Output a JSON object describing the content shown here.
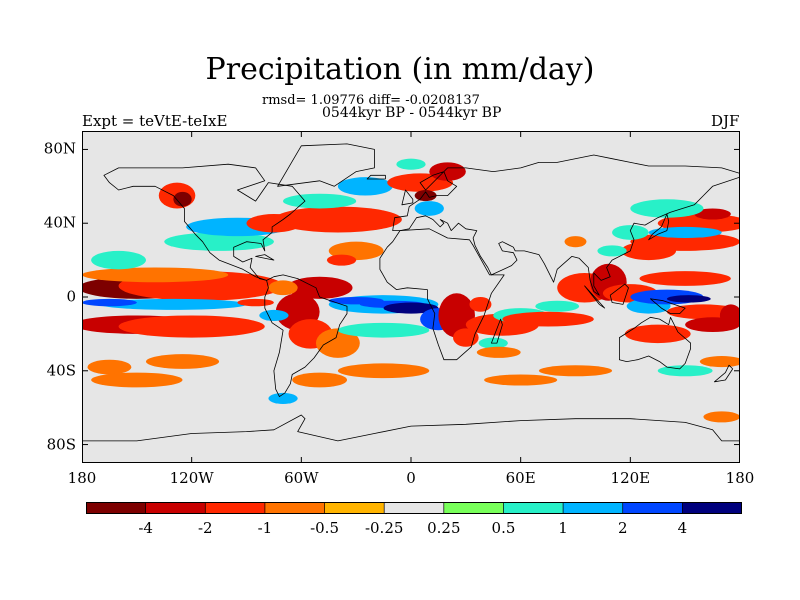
{
  "chart_data": {
    "type": "heatmap",
    "title": "Precipitation (in mm/day)",
    "stats_line": "rmsd= 1.09776 diff= -0.0208137",
    "period_line": "0544kyr BP - 0544kyr BP",
    "left_label": "Expt = teVtE-teIxE",
    "right_label": "DJF",
    "x_ticks": [
      {
        "value": -180,
        "label": "180"
      },
      {
        "value": -120,
        "label": "120W"
      },
      {
        "value": -60,
        "label": "60W"
      },
      {
        "value": 0,
        "label": "0"
      },
      {
        "value": 60,
        "label": "60E"
      },
      {
        "value": 120,
        "label": "120E"
      },
      {
        "value": 180,
        "label": "180"
      }
    ],
    "y_ticks": [
      {
        "value": 80,
        "label": "80N"
      },
      {
        "value": 40,
        "label": "40N"
      },
      {
        "value": 0,
        "label": "0"
      },
      {
        "value": -40,
        "label": "40S"
      },
      {
        "value": -80,
        "label": "80S"
      }
    ],
    "xlim": [
      -180,
      180
    ],
    "ylim": [
      -90,
      90
    ],
    "colorbar": {
      "levels": [
        "-4",
        "-2",
        "-1",
        "-0.5",
        "-0.25",
        "0.25",
        "0.5",
        "1",
        "2",
        "4"
      ],
      "colors": [
        "#7d0000",
        "#c80000",
        "#ff2800",
        "#ff7300",
        "#ffb400",
        "#e6e6e6",
        "#78ff5a",
        "#28f0c8",
        "#00b4ff",
        "#0046ff",
        "#00007d"
      ]
    },
    "background_color": "#e6e6e6",
    "coast_color": "#000000",
    "anomalies": [
      {
        "lon": -150,
        "lat": 5,
        "rx": 32,
        "ry": 6,
        "v": -4.5
      },
      {
        "lon": -115,
        "lat": 6,
        "rx": 45,
        "ry": 8,
        "v": -1.5
      },
      {
        "lon": -140,
        "lat": 12,
        "rx": 40,
        "ry": 4,
        "v": -0.6
      },
      {
        "lon": -160,
        "lat": 20,
        "rx": 15,
        "ry": 5,
        "v": 0.6
      },
      {
        "lon": -130,
        "lat": -4,
        "rx": 40,
        "ry": 3,
        "v": 1.5
      },
      {
        "lon": -165,
        "lat": -3,
        "rx": 15,
        "ry": 2,
        "v": 2.5
      },
      {
        "lon": -150,
        "lat": -15,
        "rx": 35,
        "ry": 5,
        "v": -2.5
      },
      {
        "lon": -120,
        "lat": -16,
        "rx": 40,
        "ry": 6,
        "v": -1.5
      },
      {
        "lon": -125,
        "lat": -35,
        "rx": 20,
        "ry": 4,
        "v": -0.6
      },
      {
        "lon": -165,
        "lat": -38,
        "rx": 12,
        "ry": 4,
        "v": -0.6
      },
      {
        "lon": -150,
        "lat": -45,
        "rx": 25,
        "ry": 4,
        "v": -0.6
      },
      {
        "lon": -105,
        "lat": 30,
        "rx": 30,
        "ry": 5,
        "v": 0.6
      },
      {
        "lon": -95,
        "lat": 38,
        "rx": 28,
        "ry": 5,
        "v": 1.2
      },
      {
        "lon": -128,
        "lat": 55,
        "rx": 10,
        "ry": 7,
        "v": -1.2
      },
      {
        "lon": -125,
        "lat": 53,
        "rx": 5,
        "ry": 4,
        "v": -4
      },
      {
        "lon": -75,
        "lat": 40,
        "rx": 15,
        "ry": 5,
        "v": -1.2
      },
      {
        "lon": -40,
        "lat": 42,
        "rx": 35,
        "ry": 7,
        "v": -1.5
      },
      {
        "lon": -50,
        "lat": 52,
        "rx": 20,
        "ry": 4,
        "v": 0.6
      },
      {
        "lon": -30,
        "lat": 25,
        "rx": 15,
        "ry": 5,
        "v": -0.6
      },
      {
        "lon": -38,
        "lat": 20,
        "rx": 8,
        "ry": 3,
        "v": -1.2
      },
      {
        "lon": -25,
        "lat": 60,
        "rx": 15,
        "ry": 5,
        "v": 1.5
      },
      {
        "lon": 5,
        "lat": 62,
        "rx": 18,
        "ry": 5,
        "v": -1.2
      },
      {
        "lon": 20,
        "lat": 68,
        "rx": 10,
        "ry": 5,
        "v": -2.5
      },
      {
        "lon": 8,
        "lat": 55,
        "rx": 6,
        "ry": 3,
        "v": -4
      },
      {
        "lon": 10,
        "lat": 48,
        "rx": 8,
        "ry": 4,
        "v": 1.5
      },
      {
        "lon": 0,
        "lat": 72,
        "rx": 8,
        "ry": 3,
        "v": 0.6
      },
      {
        "lon": -50,
        "lat": 5,
        "rx": 18,
        "ry": 6,
        "v": -2.5
      },
      {
        "lon": -62,
        "lat": -8,
        "rx": 12,
        "ry": 10,
        "v": -3.5
      },
      {
        "lon": -55,
        "lat": -20,
        "rx": 12,
        "ry": 8,
        "v": -1.5
      },
      {
        "lon": -70,
        "lat": 5,
        "rx": 8,
        "ry": 4,
        "v": -0.6
      },
      {
        "lon": -40,
        "lat": -25,
        "rx": 12,
        "ry": 8,
        "v": -0.6
      },
      {
        "lon": -75,
        "lat": -10,
        "rx": 8,
        "ry": 3,
        "v": 1.5
      },
      {
        "lon": -85,
        "lat": -3,
        "rx": 10,
        "ry": 2,
        "v": -1.2
      },
      {
        "lon": -15,
        "lat": -4,
        "rx": 30,
        "ry": 5,
        "v": 1.5
      },
      {
        "lon": -10,
        "lat": -4,
        "rx": 18,
        "ry": 2,
        "v": 2.5
      },
      {
        "lon": -30,
        "lat": -2,
        "rx": 15,
        "ry": 2,
        "v": 2.5
      },
      {
        "lon": 0,
        "lat": -6,
        "rx": 15,
        "ry": 3,
        "v": 4.5
      },
      {
        "lon": 15,
        "lat": -12,
        "rx": 10,
        "ry": 6,
        "v": 2.5
      },
      {
        "lon": -15,
        "lat": -18,
        "rx": 25,
        "ry": 4,
        "v": 0.6
      },
      {
        "lon": -15,
        "lat": -40,
        "rx": 25,
        "ry": 4,
        "v": -0.6
      },
      {
        "lon": -50,
        "lat": -45,
        "rx": 15,
        "ry": 4,
        "v": -0.6
      },
      {
        "lon": 25,
        "lat": -10,
        "rx": 10,
        "ry": 12,
        "v": -2.5
      },
      {
        "lon": 30,
        "lat": -22,
        "rx": 7,
        "ry": 5,
        "v": -1.5
      },
      {
        "lon": 38,
        "lat": -4,
        "rx": 6,
        "ry": 4,
        "v": -1.2
      },
      {
        "lon": 50,
        "lat": -15,
        "rx": 20,
        "ry": 6,
        "v": -1.5
      },
      {
        "lon": 60,
        "lat": -10,
        "rx": 15,
        "ry": 4,
        "v": 0.6
      },
      {
        "lon": 75,
        "lat": -12,
        "rx": 25,
        "ry": 4,
        "v": -1.2
      },
      {
        "lon": 80,
        "lat": -5,
        "rx": 12,
        "ry": 3,
        "v": 0.6
      },
      {
        "lon": 45,
        "lat": -25,
        "rx": 8,
        "ry": 3,
        "v": 0.6
      },
      {
        "lon": 48,
        "lat": -30,
        "rx": 12,
        "ry": 3,
        "v": -0.6
      },
      {
        "lon": 60,
        "lat": -45,
        "rx": 20,
        "ry": 3,
        "v": -0.6
      },
      {
        "lon": 90,
        "lat": -40,
        "rx": 20,
        "ry": 3,
        "v": -0.6
      },
      {
        "lon": 95,
        "lat": 5,
        "rx": 15,
        "ry": 8,
        "v": -1.5
      },
      {
        "lon": 108,
        "lat": 8,
        "rx": 10,
        "ry": 10,
        "v": -3
      },
      {
        "lon": 120,
        "lat": 2,
        "rx": 15,
        "ry": 5,
        "v": -1.5
      },
      {
        "lon": 130,
        "lat": -5,
        "rx": 12,
        "ry": 4,
        "v": 1.5
      },
      {
        "lon": 140,
        "lat": 0,
        "rx": 20,
        "ry": 4,
        "v": 2.5
      },
      {
        "lon": 152,
        "lat": -1,
        "rx": 12,
        "ry": 2,
        "v": 5
      },
      {
        "lon": 160,
        "lat": -8,
        "rx": 20,
        "ry": 4,
        "v": -1.5
      },
      {
        "lon": 165,
        "lat": -15,
        "rx": 15,
        "ry": 4,
        "v": -2.5
      },
      {
        "lon": 150,
        "lat": 10,
        "rx": 25,
        "ry": 4,
        "v": -1.2
      },
      {
        "lon": 135,
        "lat": -20,
        "rx": 18,
        "ry": 5,
        "v": -1.5
      },
      {
        "lon": 175,
        "lat": -10,
        "rx": 6,
        "ry": 6,
        "v": -2.5
      },
      {
        "lon": 130,
        "lat": 25,
        "rx": 15,
        "ry": 5,
        "v": -1.2
      },
      {
        "lon": 150,
        "lat": 30,
        "rx": 30,
        "ry": 5,
        "v": -1.2
      },
      {
        "lon": 160,
        "lat": 40,
        "rx": 25,
        "ry": 5,
        "v": -1.2
      },
      {
        "lon": 165,
        "lat": 45,
        "rx": 10,
        "ry": 3,
        "v": -2.5
      },
      {
        "lon": 140,
        "lat": 48,
        "rx": 20,
        "ry": 5,
        "v": 0.6
      },
      {
        "lon": 150,
        "lat": 35,
        "rx": 20,
        "ry": 3,
        "v": 1.2
      },
      {
        "lon": 120,
        "lat": 35,
        "rx": 10,
        "ry": 4,
        "v": 0.6
      },
      {
        "lon": 110,
        "lat": 25,
        "rx": 8,
        "ry": 3,
        "v": 0.6
      },
      {
        "lon": 90,
        "lat": 30,
        "rx": 6,
        "ry": 3,
        "v": -0.6
      },
      {
        "lon": 150,
        "lat": -40,
        "rx": 15,
        "ry": 3,
        "v": 0.6
      },
      {
        "lon": 170,
        "lat": -35,
        "rx": 12,
        "ry": 3,
        "v": -0.6
      },
      {
        "lon": -70,
        "lat": -55,
        "rx": 8,
        "ry": 3,
        "v": 1.2
      },
      {
        "lon": 170,
        "lat": -65,
        "rx": 10,
        "ry": 3,
        "v": -0.6
      }
    ]
  }
}
